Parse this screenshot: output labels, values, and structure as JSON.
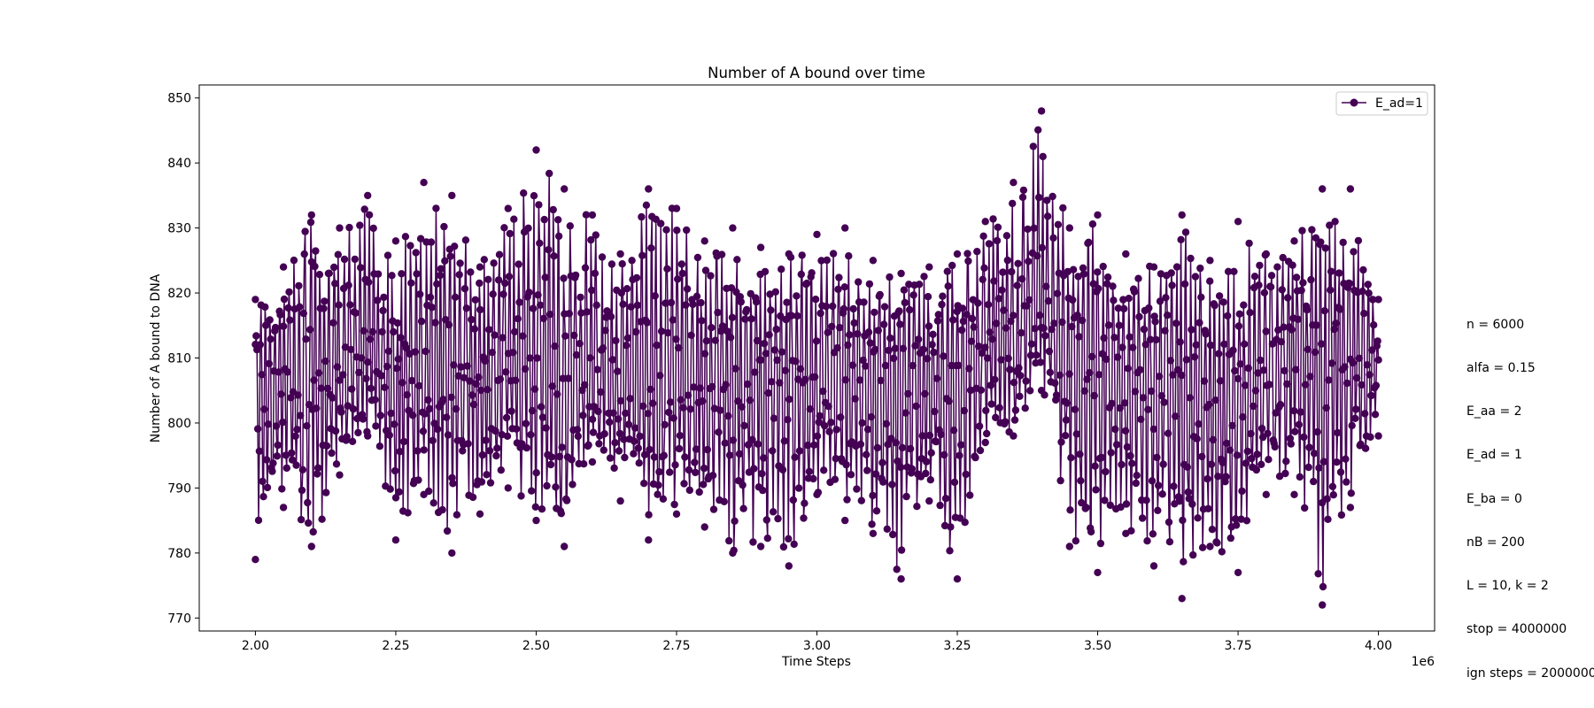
{
  "chart_data": {
    "type": "line",
    "title": "Number of A bound over time",
    "xlabel": "Time Steps",
    "ylabel": "Number of A bound to DNA",
    "x_offset_label": "1e6",
    "xlim": [
      1.9,
      4.1
    ],
    "ylim": [
      768,
      852
    ],
    "x_ticks": [
      2.0,
      2.25,
      2.5,
      2.75,
      3.0,
      3.25,
      3.5,
      3.75,
      4.0
    ],
    "x_tick_labels": [
      "2.00",
      "2.25",
      "2.50",
      "2.75",
      "3.00",
      "3.25",
      "3.50",
      "3.75",
      "4.00"
    ],
    "y_ticks": [
      770,
      780,
      790,
      800,
      810,
      820,
      830,
      840,
      850
    ],
    "y_tick_labels": [
      "770",
      "780",
      "790",
      "800",
      "810",
      "820",
      "830",
      "840",
      "850"
    ],
    "grid": false,
    "legend_position": "upper-right",
    "series": [
      {
        "name": "E_ad=1",
        "color": "#440154",
        "marker": "circle",
        "x": [
          2.0,
          2.05,
          2.1,
          2.15,
          2.2,
          2.25,
          2.3,
          2.35,
          2.4,
          2.45,
          2.5,
          2.55,
          2.6,
          2.65,
          2.7,
          2.75,
          2.8,
          2.85,
          2.9,
          2.95,
          3.0,
          3.05,
          3.1,
          3.15,
          3.2,
          3.25,
          3.3,
          3.35,
          3.4,
          3.45,
          3.5,
          3.55,
          3.6,
          3.65,
          3.7,
          3.75,
          3.8,
          3.85,
          3.9,
          3.95,
          4.0
        ],
        "y": [
          805,
          808,
          806,
          807,
          812,
          804,
          807,
          808,
          806,
          809,
          810,
          805,
          808,
          806,
          807,
          806,
          808,
          807,
          805,
          806,
          806,
          807,
          804,
          805,
          803,
          808,
          812,
          812,
          818,
          812,
          809,
          804,
          806,
          804,
          803,
          800,
          810,
          812,
          808,
          810,
          808
        ],
        "upper_envelope": [
          819,
          824,
          832,
          830,
          835,
          828,
          837,
          835,
          824,
          833,
          842,
          836,
          832,
          826,
          836,
          833,
          828,
          830,
          827,
          826,
          829,
          830,
          825,
          823,
          824,
          826,
          831,
          837,
          848,
          830,
          832,
          826,
          824,
          832,
          825,
          831,
          826,
          828,
          836,
          836,
          819
        ],
        "lower_envelope": [
          779,
          787,
          781,
          792,
          798,
          782,
          789,
          780,
          786,
          790,
          785,
          781,
          794,
          788,
          782,
          786,
          784,
          780,
          781,
          778,
          789,
          785,
          783,
          776,
          788,
          776,
          797,
          798,
          805,
          781,
          777,
          783,
          778,
          773,
          781,
          777,
          789,
          789,
          772,
          787,
          798
        ]
      }
    ],
    "annotation_lines": [
      "n = 6000",
      "alfa = 0.15",
      "E_aa = 2",
      "E_ad = 1",
      "E_ba = 0",
      "nB = 200",
      "L = 10, k = 2",
      "stop = 4000000",
      "ign steps = 2000000"
    ]
  }
}
